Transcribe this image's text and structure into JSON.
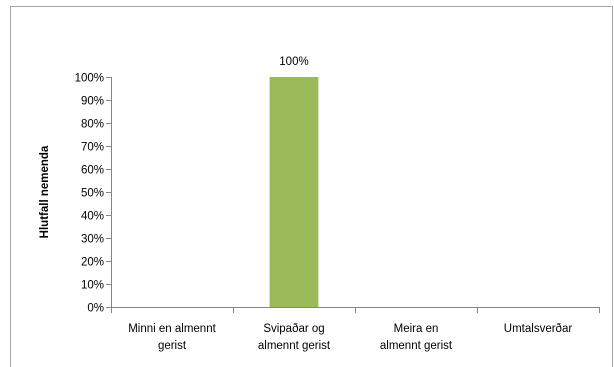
{
  "chart_data": {
    "type": "bar",
    "categories": [
      [
        "Minni en almennt",
        "gerist"
      ],
      [
        "Svipaðar og",
        "almennt gerist"
      ],
      [
        "Meira en",
        "almennt gerist"
      ],
      [
        "Umtalsverðar"
      ]
    ],
    "values": [
      0,
      100,
      0,
      0
    ],
    "data_labels": [
      "",
      "100%",
      "",
      ""
    ],
    "ylabel": "Hlutfall nemenda",
    "xlabel": "",
    "ylim": [
      0,
      100
    ],
    "yticks": [
      "0%",
      "10%",
      "20%",
      "30%",
      "40%",
      "50%",
      "60%",
      "70%",
      "80%",
      "90%",
      "100%"
    ],
    "grid": false,
    "legend": "none",
    "colors": {
      "bar": "#9bbb59",
      "axis": "#868686",
      "frame": "#a6a6a6"
    }
  }
}
